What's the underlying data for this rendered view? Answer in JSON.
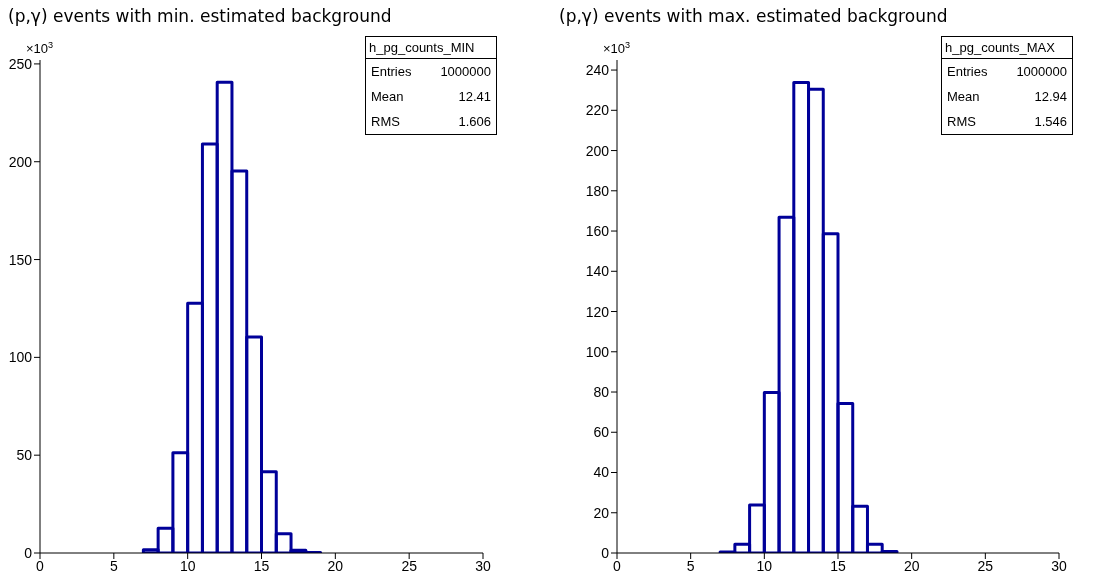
{
  "chart_data": [
    {
      "type": "histogram",
      "title": "(p,γ) events with min. estimated background",
      "ylabel": "×10$^{3}$",
      "bins": [
        0,
        1,
        2,
        3,
        4,
        5,
        6,
        7,
        8,
        9,
        10,
        11,
        12,
        13,
        14,
        15,
        16,
        17,
        18,
        19,
        20,
        21,
        22,
        23,
        24,
        25,
        26,
        27,
        28,
        29,
        30
      ],
      "values": [
        0,
        0,
        0,
        0,
        0,
        0,
        0,
        1.7,
        12.6,
        51.2,
        127.6,
        209,
        240.6,
        195.2,
        110.4,
        41.5,
        9.9,
        1.4,
        0.2,
        0,
        0,
        0,
        0,
        0,
        0,
        0,
        0,
        0,
        0,
        0
      ],
      "color": "#000099",
      "xlim": [
        0,
        30
      ],
      "xticks": [
        0,
        5,
        10,
        15,
        20,
        25,
        30
      ],
      "ylim": [
        0,
        252
      ],
      "yticks": [
        0,
        50,
        100,
        150,
        200,
        250
      ],
      "grid": false,
      "legend": false,
      "annotations": [
        "h_pg_counts_MIN",
        "Entries 1000000",
        "Mean 12.41",
        "RMS 1.606"
      ]
    },
    {
      "type": "histogram",
      "title": "(p,γ) events with max. estimated background",
      "ylabel": "×10$^{3}$",
      "bins": [
        0,
        1,
        2,
        3,
        4,
        5,
        6,
        7,
        8,
        9,
        10,
        11,
        12,
        13,
        14,
        15,
        16,
        17,
        18,
        19,
        20,
        21,
        22,
        23,
        24,
        25,
        26,
        27,
        28,
        29,
        30
      ],
      "values": [
        0,
        0,
        0,
        0,
        0,
        0,
        0,
        0.5,
        4.4,
        23.9,
        79.7,
        166.9,
        233.8,
        230.5,
        158.6,
        74.3,
        23.2,
        4.4,
        0.7,
        0,
        0,
        0,
        0,
        0,
        0,
        0,
        0,
        0,
        0,
        0
      ],
      "color": "#000099",
      "xlim": [
        0,
        30
      ],
      "xticks": [
        0,
        5,
        10,
        15,
        20,
        25,
        30
      ],
      "ylim": [
        0,
        245
      ],
      "yticks": [
        0,
        20,
        40,
        60,
        80,
        100,
        120,
        140,
        160,
        180,
        200,
        220,
        240
      ],
      "grid": false,
      "legend": false,
      "annotations": [
        "h_pg_counts_MAX",
        "Entries 1000000",
        "Mean 12.94",
        "RMS 1.546"
      ]
    }
  ]
}
